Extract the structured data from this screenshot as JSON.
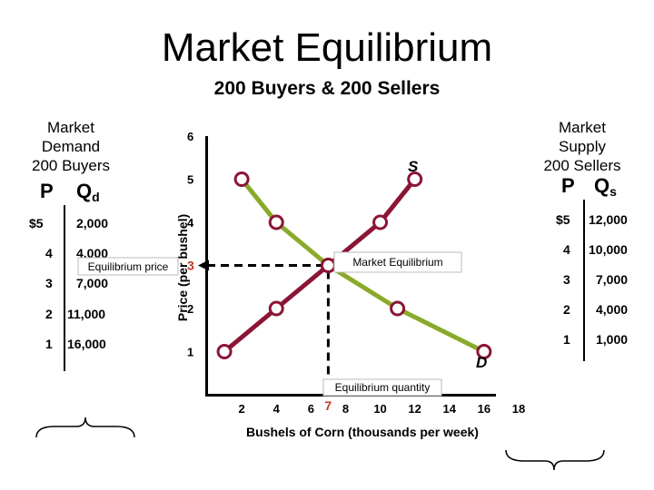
{
  "title": "Market Equilibrium",
  "subtitle": "200 Buyers & 200 Sellers",
  "demand_table": {
    "heading": [
      "Market",
      "Demand",
      "200 Buyers"
    ],
    "col_p": "P",
    "col_q": "Q",
    "col_q_sub": "d",
    "rows": [
      {
        "p": "$5",
        "q": "2,000"
      },
      {
        "p": "4",
        "q": "4,000"
      },
      {
        "p": "3",
        "q": "7,000"
      },
      {
        "p": "2",
        "q": "11,000"
      },
      {
        "p": "1",
        "q": "16,000"
      }
    ]
  },
  "supply_table": {
    "heading": [
      "Market",
      "Supply",
      "200 Sellers"
    ],
    "col_p": "P",
    "col_q": "Q",
    "col_q_sub": "s",
    "rows": [
      {
        "p": "$5",
        "q": "12,000"
      },
      {
        "p": "4",
        "q": "10,000"
      },
      {
        "p": "3",
        "q": "7,000"
      },
      {
        "p": "2",
        "q": "4,000"
      },
      {
        "p": "1",
        "q": "1,000"
      }
    ]
  },
  "chart_data": {
    "type": "line",
    "xlabel": "Bushels of Corn (thousands per week)",
    "ylabel": "Price (per bushel)",
    "xlim": [
      0,
      18
    ],
    "ylim": [
      0,
      6
    ],
    "x_ticks": [
      2,
      4,
      6,
      8,
      10,
      12,
      14,
      16,
      18
    ],
    "y_ticks": [
      1,
      2,
      4,
      5,
      6
    ],
    "series": [
      {
        "name": "S",
        "color": "#8b1535",
        "points": [
          [
            1,
            1
          ],
          [
            4,
            2
          ],
          [
            7,
            3
          ],
          [
            10,
            4
          ],
          [
            12,
            5
          ]
        ]
      },
      {
        "name": "D",
        "color": "#8aaa2a",
        "points": [
          [
            2,
            5
          ],
          [
            4,
            4
          ],
          [
            7,
            3
          ],
          [
            11,
            2
          ],
          [
            16,
            1
          ]
        ]
      }
    ],
    "equilibrium": {
      "x": 7,
      "y": 3,
      "price_label": "3",
      "quantity_label": "7"
    },
    "annotations": {
      "market_equilibrium": "Market Equilibrium",
      "equilibrium_price": "Equilibrium price",
      "equilibrium_quantity": "Equilibrium quantity"
    }
  }
}
